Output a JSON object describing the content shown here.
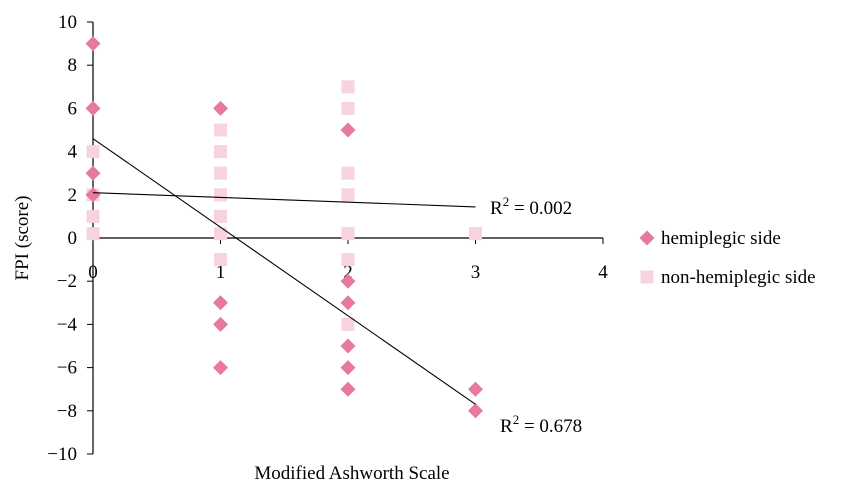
{
  "chart_data": {
    "type": "scatter",
    "title": "",
    "xlabel": "Modified Ashworth Scale",
    "ylabel": "FPI (score)",
    "xlim": [
      0,
      4
    ],
    "ylim": [
      -10,
      10
    ],
    "x_ticks": [
      "0",
      "1",
      "2",
      "3",
      "4"
    ],
    "y_ticks": [
      "10",
      "8",
      "6",
      "4",
      "2",
      "0",
      "−2",
      "−4",
      "−6",
      "−8",
      "−10"
    ],
    "grid": false,
    "legend_position": "right",
    "series": [
      {
        "name": "hemiplegic side",
        "marker": "diamond",
        "color": "#E8799E",
        "points": [
          [
            0,
            9
          ],
          [
            0,
            6
          ],
          [
            0,
            3
          ],
          [
            0,
            2
          ],
          [
            1,
            6
          ],
          [
            1,
            -3
          ],
          [
            1,
            -4
          ],
          [
            1,
            -6
          ],
          [
            2,
            5
          ],
          [
            2,
            -2
          ],
          [
            2,
            -3
          ],
          [
            2,
            -5
          ],
          [
            2,
            -6
          ],
          [
            2,
            -7
          ],
          [
            3,
            -7
          ],
          [
            3,
            -8
          ]
        ],
        "trendline": {
          "intercept": 4.6,
          "slope": -4.1,
          "x_range": [
            0,
            3
          ],
          "r2_label": "R",
          "r2_exp": "2",
          "r2_value": " = 0.678"
        }
      },
      {
        "name": "non-hemiplegic side",
        "marker": "square",
        "color": "#F7D3E1",
        "points": [
          [
            0,
            4
          ],
          [
            0,
            2
          ],
          [
            0,
            1
          ],
          [
            0,
            0.2
          ],
          [
            1,
            5
          ],
          [
            1,
            4
          ],
          [
            1,
            3
          ],
          [
            1,
            2
          ],
          [
            1,
            1
          ],
          [
            1,
            0.2
          ],
          [
            1,
            -1
          ],
          [
            2,
            7
          ],
          [
            2,
            6
          ],
          [
            2,
            3
          ],
          [
            2,
            2
          ],
          [
            2,
            0.2
          ],
          [
            2,
            -1
          ],
          [
            2,
            -4
          ],
          [
            3,
            0.2
          ]
        ],
        "trendline": {
          "intercept": 2.1,
          "slope": -0.22,
          "x_range": [
            0,
            3
          ],
          "r2_label": "R",
          "r2_exp": "2",
          "r2_value": " = 0.002"
        }
      }
    ]
  }
}
